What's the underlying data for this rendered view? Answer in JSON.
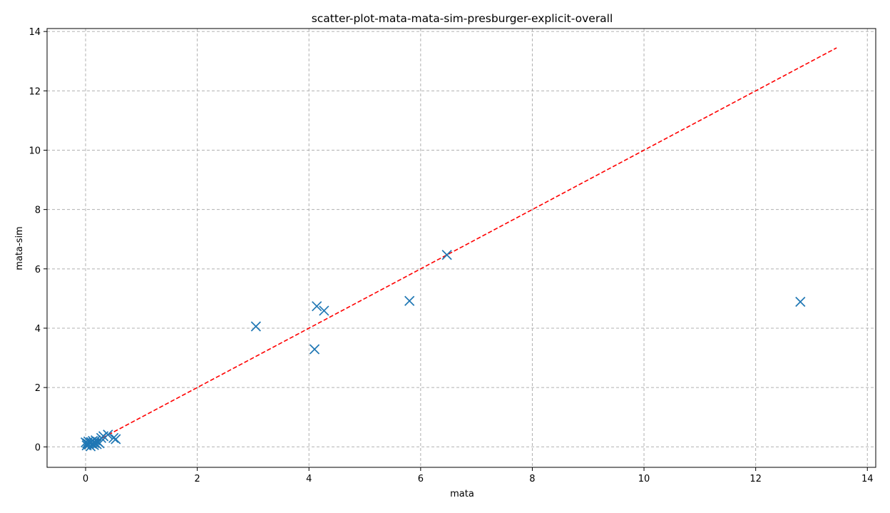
{
  "chart_data": {
    "type": "scatter",
    "title": "scatter-plot-mata-mata-sim-presburger-explicit-overall",
    "xlabel": "mata",
    "ylabel": "mata-sim",
    "xlim": [
      -0.69,
      14.15
    ],
    "ylim": [
      -0.69,
      14.1
    ],
    "x_ticks": [
      0,
      2,
      4,
      6,
      8,
      10,
      12,
      14
    ],
    "y_ticks": [
      0,
      2,
      4,
      6,
      8,
      10,
      12,
      14
    ],
    "x_tick_labels": [
      "0",
      "2",
      "4",
      "6",
      "8",
      "10",
      "12",
      "14"
    ],
    "y_tick_labels": [
      "0",
      "2",
      "4",
      "6",
      "8",
      "10",
      "12",
      "14"
    ],
    "grid": true,
    "marker": "x",
    "colors": {
      "points": "#1f77b4",
      "reference_line": "#ff0000",
      "grid": "#b0b0b0"
    },
    "reference_line": {
      "style": "dashed",
      "x": [
        0,
        13.45
      ],
      "y": [
        0,
        13.45
      ]
    },
    "points": [
      {
        "x": 0.0,
        "y": 0.15
      },
      {
        "x": 0.02,
        "y": 0.05
      },
      {
        "x": 0.03,
        "y": 0.12
      },
      {
        "x": 0.05,
        "y": 0.18
      },
      {
        "x": 0.06,
        "y": 0.08
      },
      {
        "x": 0.08,
        "y": 0.14
      },
      {
        "x": 0.09,
        "y": 0.02
      },
      {
        "x": 0.1,
        "y": 0.16
      },
      {
        "x": 0.12,
        "y": 0.1
      },
      {
        "x": 0.13,
        "y": 0.2
      },
      {
        "x": 0.15,
        "y": 0.06
      },
      {
        "x": 0.16,
        "y": 0.13
      },
      {
        "x": 0.18,
        "y": 0.22
      },
      {
        "x": 0.2,
        "y": 0.09
      },
      {
        "x": 0.22,
        "y": 0.17
      },
      {
        "x": 0.25,
        "y": 0.12
      },
      {
        "x": 0.28,
        "y": 0.3
      },
      {
        "x": 0.32,
        "y": 0.36
      },
      {
        "x": 0.4,
        "y": 0.41
      },
      {
        "x": 0.5,
        "y": 0.3
      },
      {
        "x": 0.54,
        "y": 0.26
      },
      {
        "x": 3.05,
        "y": 4.06
      },
      {
        "x": 4.1,
        "y": 3.29
      },
      {
        "x": 4.14,
        "y": 4.74
      },
      {
        "x": 4.27,
        "y": 4.59
      },
      {
        "x": 5.8,
        "y": 4.92
      },
      {
        "x": 6.47,
        "y": 6.47
      },
      {
        "x": 12.8,
        "y": 4.89
      }
    ]
  }
}
